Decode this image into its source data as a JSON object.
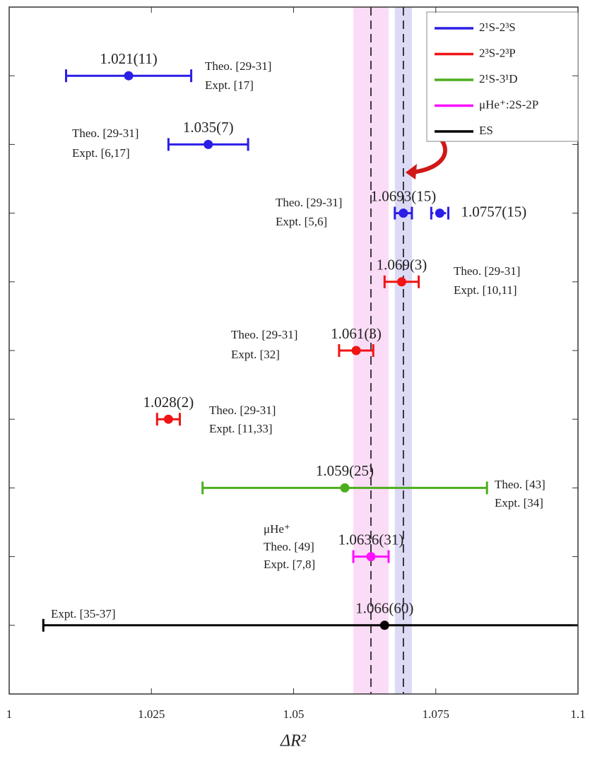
{
  "chart_data": {
    "type": "errorbar",
    "xlabel": "ΔR²",
    "xlim": [
      1,
      1.1
    ],
    "xticks": [
      1,
      1.025,
      1.05,
      1.075,
      1.1
    ],
    "ylim": [
      0,
      10
    ],
    "yticks": [
      1,
      2,
      3,
      4,
      5,
      6,
      7,
      8,
      9
    ],
    "categories": [
      null,
      null,
      null,
      null,
      null,
      null,
      null,
      null,
      null
    ],
    "series": [
      {
        "name": "2¹S-2³S",
        "color": "#2b1ee6",
        "points": [
          {
            "y": 9,
            "x": 1.021,
            "err": 0.011,
            "value_label": "1.021(11)",
            "note": [
              "Theo. [29-31]",
              "Expt. [17]"
            ]
          },
          {
            "y": 8,
            "x": 1.035,
            "err": 0.007,
            "value_label": "1.035(7)",
            "note": [
              "Theo. [29-31]",
              "Expt. [6,17]"
            ]
          },
          {
            "y": 7,
            "x": 1.0693,
            "err": 0.0015,
            "value_label": "1.0693(15)",
            "note": [
              "Theo. [29-31]",
              "Expt. [5,6]"
            ],
            "band_color": "#dcdaf5"
          },
          {
            "y": 7,
            "x": 1.0757,
            "err": 0.0015,
            "value_label": "1.0757(15)",
            "style": "dotted"
          }
        ]
      },
      {
        "name": "2³S-2³P",
        "color": "#f01414",
        "points": [
          {
            "y": 6,
            "x": 1.069,
            "err": 0.003,
            "value_label": "1.069(3)",
            "note": [
              "Theo. [29-31]",
              "Expt. [10,11]"
            ]
          },
          {
            "y": 5,
            "x": 1.061,
            "err": 0.003,
            "value_label": "1.061(3)",
            "note": [
              "Theo. [29-31]",
              "Expt. [32]"
            ]
          },
          {
            "y": 4,
            "x": 1.028,
            "err": 0.002,
            "value_label": "1.028(2)",
            "note": [
              "Theo. [29-31]",
              "Expt. [11,33]"
            ]
          }
        ]
      },
      {
        "name": "2¹S-3¹D",
        "color": "#4cae1c",
        "points": [
          {
            "y": 3,
            "x": 1.059,
            "err": 0.025,
            "value_label": "1.059(25)",
            "note": [
              "Theo. [43]",
              "Expt. [34]"
            ]
          }
        ]
      },
      {
        "name": "μHe⁺:2S-2P",
        "color": "#ff10ff",
        "points": [
          {
            "y": 2,
            "x": 1.0636,
            "err": 0.0031,
            "value_label": "1.0636(31)",
            "note": [
              "μHe⁺",
              "Theo. [49]",
              "Expt. [7,8]"
            ],
            "band_color": "#fbdcf6"
          }
        ]
      },
      {
        "name": "ES",
        "color": "#000000",
        "points": [
          {
            "y": 1,
            "x": 1.066,
            "err": 0.06,
            "value_label": "1.066(60)",
            "note": [
              "Expt. [35-37]"
            ]
          }
        ]
      }
    ]
  }
}
